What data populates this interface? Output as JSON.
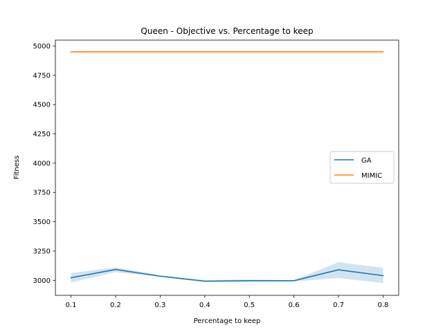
{
  "chart_data": {
    "type": "line",
    "title": "Queen - Objective vs. Percentage to keep",
    "xlabel": "Percentage to keep",
    "ylabel": "Fitness",
    "x": [
      0.1,
      0.2,
      0.3,
      0.4,
      0.5,
      0.6,
      0.7,
      0.8
    ],
    "xticks": [
      0.1,
      0.2,
      0.3,
      0.4,
      0.5,
      0.6,
      0.7,
      0.8
    ],
    "xtick_labels": [
      "0.1",
      "0.2",
      "0.3",
      "0.4",
      "0.5",
      "0.6",
      "0.7",
      "0.8"
    ],
    "yticks": [
      3000,
      3250,
      3500,
      3750,
      4000,
      4250,
      4500,
      4750,
      5000
    ],
    "ytick_labels": [
      "3000",
      "3250",
      "3500",
      "3750",
      "4000",
      "4250",
      "4500",
      "4750",
      "5000"
    ],
    "xlim": [
      0.065,
      0.835
    ],
    "ylim": [
      2872,
      5050
    ],
    "grid": false,
    "legend_position": "center-right",
    "series": [
      {
        "name": "GA",
        "color": "#1f77b4",
        "values": [
          3022,
          3093,
          3035,
          2993,
          2997,
          2997,
          3090,
          3040
        ],
        "band_lower": [
          2982,
          3070,
          3030,
          2985,
          2987,
          2990,
          3020,
          2977
        ],
        "band_upper": [
          3062,
          3110,
          3045,
          3003,
          3007,
          3002,
          3155,
          3107
        ]
      },
      {
        "name": "MIMIC",
        "color": "#ff7f0e",
        "values": [
          4950,
          4950,
          4950,
          4950,
          4950,
          4950,
          4950,
          4950
        ]
      }
    ]
  }
}
